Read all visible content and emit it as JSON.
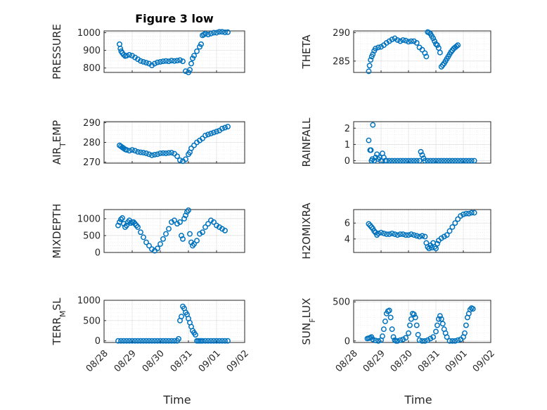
{
  "figure": {
    "title": "Figure 3 low",
    "xlabel": "Time"
  },
  "colors": {
    "marker": "#0072BD"
  },
  "x_ticks": [
    "08/28",
    "08/29",
    "08/30",
    "08/31",
    "09/01",
    "09/02"
  ],
  "chart_data": [
    {
      "type": "scatter",
      "title": "Figure 3 low",
      "xlabel": "",
      "ylabel": "PRESSURE",
      "ylim": [
        775,
        1010
      ],
      "yticks": [
        800,
        900,
        1000
      ],
      "xlim": [
        0,
        5
      ],
      "grid": true,
      "x": [
        0.55,
        0.58,
        0.61,
        0.65,
        0.7,
        0.75,
        0.8,
        0.9,
        1.0,
        1.1,
        1.2,
        1.3,
        1.4,
        1.5,
        1.6,
        1.7,
        1.8,
        1.9,
        2.0,
        2.1,
        2.2,
        2.3,
        2.4,
        2.5,
        2.6,
        2.7,
        2.8,
        2.9,
        3.0,
        3.05,
        3.1,
        3.15,
        3.2,
        3.3,
        3.4,
        3.45,
        3.5,
        3.55,
        3.6,
        3.7,
        3.8,
        3.9,
        4.0,
        4.1,
        4.2,
        4.3,
        4.4
      ],
      "y": [
        935,
        910,
        895,
        885,
        875,
        868,
        870,
        875,
        870,
        860,
        850,
        840,
        835,
        830,
        825,
        815,
        825,
        832,
        835,
        838,
        840,
        838,
        842,
        840,
        842,
        845,
        838,
        782,
        775,
        790,
        825,
        855,
        870,
        895,
        920,
        935,
        985,
        990,
        995,
        990,
        995,
        1000,
        1000,
        1005,
        1005,
        1002,
        1003
      ]
    },
    {
      "type": "scatter",
      "xlabel": "",
      "ylabel": "THETA",
      "ylim": [
        283,
        290.3
      ],
      "yticks": [
        285,
        290
      ],
      "xlim": [
        0,
        5
      ],
      "grid": true,
      "x": [
        0.55,
        0.58,
        0.62,
        0.66,
        0.7,
        0.75,
        0.8,
        0.9,
        1.0,
        1.1,
        1.2,
        1.3,
        1.4,
        1.5,
        1.6,
        1.7,
        1.8,
        1.9,
        2.0,
        2.1,
        2.2,
        2.3,
        2.4,
        2.5,
        2.6,
        2.65,
        2.7,
        2.75,
        2.8,
        2.85,
        2.9,
        2.95,
        3.0,
        3.05,
        3.1,
        3.15,
        3.2,
        3.25,
        3.3,
        3.35,
        3.4,
        3.45,
        3.5,
        3.55,
        3.6,
        3.65,
        3.7,
        3.75,
        3.8
      ],
      "y": [
        283.2,
        284.2,
        285.2,
        285.8,
        286.2,
        286.8,
        287.2,
        287.4,
        287.5,
        287.8,
        288.2,
        288.5,
        288.8,
        289.0,
        288.7,
        288.5,
        288.7,
        288.6,
        288.4,
        288.5,
        288.5,
        288.2,
        287.4,
        287.0,
        286.4,
        285.8,
        290.1,
        290.0,
        289.8,
        289.4,
        289.0,
        288.5,
        288.0,
        287.8,
        287.3,
        286.5,
        284.0,
        284.3,
        284.6,
        285.0,
        285.4,
        285.8,
        286.2,
        286.6,
        286.9,
        287.2,
        287.4,
        287.6,
        287.8
      ]
    },
    {
      "type": "scatter",
      "xlabel": "",
      "ylabel": "AIR_TEMP",
      "ylim": [
        269.5,
        290.5
      ],
      "yticks": [
        270,
        280,
        290
      ],
      "xlim": [
        0,
        5
      ],
      "grid": true,
      "x": [
        0.55,
        0.6,
        0.65,
        0.7,
        0.75,
        0.8,
        0.9,
        1.0,
        1.1,
        1.2,
        1.3,
        1.4,
        1.5,
        1.6,
        1.7,
        1.8,
        1.9,
        2.0,
        2.1,
        2.2,
        2.3,
        2.4,
        2.5,
        2.6,
        2.7,
        2.8,
        2.9,
        3.0,
        3.05,
        3.1,
        3.2,
        3.3,
        3.4,
        3.5,
        3.6,
        3.7,
        3.8,
        3.9,
        4.0,
        4.1,
        4.2,
        4.3,
        4.4
      ],
      "y": [
        278.5,
        278.0,
        277.5,
        277.0,
        276.5,
        276.2,
        275.8,
        276.2,
        275.8,
        275.2,
        275.0,
        274.8,
        274.5,
        274.0,
        273.5,
        273.8,
        274.0,
        274.5,
        274.6,
        274.5,
        274.7,
        274.8,
        274.3,
        273.0,
        271.0,
        270.5,
        271.5,
        274.0,
        275.0,
        277.0,
        278.5,
        280.0,
        281.0,
        282.0,
        283.5,
        284.0,
        284.5,
        285.0,
        285.5,
        286.0,
        287.0,
        287.5,
        288.0
      ]
    },
    {
      "type": "scatter",
      "xlabel": "",
      "ylabel": "RAINFALL",
      "ylim": [
        -0.15,
        2.4
      ],
      "yticks": [
        0,
        1,
        2
      ],
      "xlim": [
        0,
        5
      ],
      "grid": true,
      "x": [
        0.55,
        0.6,
        0.63,
        0.65,
        0.68,
        0.7,
        0.75,
        0.8,
        0.85,
        0.9,
        0.95,
        1.0,
        1.05,
        1.1,
        1.15,
        1.2,
        1.3,
        1.4,
        1.5,
        1.6,
        1.7,
        1.8,
        1.9,
        2.0,
        2.1,
        2.2,
        2.3,
        2.4,
        2.45,
        2.5,
        2.55,
        2.6,
        2.7,
        2.8,
        2.9,
        3.0,
        3.1,
        3.2,
        3.3,
        3.4,
        3.5,
        3.6,
        3.7,
        3.8,
        3.9,
        4.0,
        4.1,
        4.2,
        4.3,
        4.4
      ],
      "y": [
        1.25,
        0.65,
        0.65,
        0.0,
        0.1,
        2.2,
        0.0,
        0.2,
        0.4,
        0.1,
        0.2,
        0.0,
        0.45,
        0.2,
        0.0,
        0.0,
        0.0,
        0.0,
        0.0,
        0.0,
        0.0,
        0.0,
        0.0,
        0.0,
        0.0,
        0.0,
        0.0,
        0.0,
        0.55,
        0.35,
        0.15,
        0.0,
        0.0,
        0.0,
        0.0,
        0.0,
        0.0,
        0.0,
        0.0,
        0.0,
        0.0,
        0.0,
        0.0,
        0.0,
        0.0,
        0.0,
        0.0,
        0.0,
        0.0,
        0.0
      ]
    },
    {
      "type": "scatter",
      "xlabel": "",
      "ylabel": "MIXDEPTH",
      "ylim": [
        0,
        1270
      ],
      "yticks": [
        0,
        500,
        1000
      ],
      "xlim": [
        0,
        5
      ],
      "grid": true,
      "x": [
        0.5,
        0.55,
        0.6,
        0.65,
        0.7,
        0.75,
        0.8,
        0.85,
        0.9,
        0.95,
        1.0,
        1.05,
        1.1,
        1.15,
        1.2,
        1.3,
        1.4,
        1.5,
        1.6,
        1.7,
        1.8,
        1.9,
        2.0,
        2.1,
        2.2,
        2.3,
        2.4,
        2.5,
        2.6,
        2.7,
        2.75,
        2.8,
        2.85,
        2.9,
        2.95,
        3.0,
        3.05,
        3.1,
        3.15,
        3.2,
        3.3,
        3.4,
        3.5,
        3.6,
        3.7,
        3.8,
        3.9,
        4.0,
        4.1,
        4.2,
        4.3
      ],
      "y": [
        800,
        900,
        980,
        1020,
        850,
        750,
        800,
        900,
        950,
        870,
        900,
        900,
        850,
        800,
        750,
        600,
        450,
        300,
        200,
        100,
        50,
        120,
        250,
        400,
        550,
        700,
        900,
        950,
        850,
        900,
        500,
        400,
        1000,
        1100,
        1200,
        1250,
        550,
        300,
        200,
        250,
        350,
        550,
        600,
        750,
        850,
        950,
        900,
        800,
        750,
        700,
        650
      ]
    },
    {
      "type": "scatter",
      "xlabel": "",
      "ylabel": "H2OMIXRA",
      "ylim": [
        2.3,
        7.7
      ],
      "yticks": [
        4,
        6
      ],
      "xlim": [
        0,
        5
      ],
      "grid": true,
      "x": [
        0.55,
        0.6,
        0.65,
        0.7,
        0.75,
        0.8,
        0.85,
        0.9,
        1.0,
        1.1,
        1.2,
        1.3,
        1.4,
        1.5,
        1.6,
        1.7,
        1.8,
        1.9,
        2.0,
        2.1,
        2.2,
        2.3,
        2.4,
        2.5,
        2.6,
        2.65,
        2.7,
        2.75,
        2.8,
        2.85,
        2.9,
        2.95,
        3.0,
        3.05,
        3.1,
        3.2,
        3.3,
        3.4,
        3.5,
        3.6,
        3.7,
        3.8,
        3.9,
        4.0,
        4.1,
        4.2,
        4.3,
        4.4
      ],
      "y": [
        5.9,
        5.7,
        5.5,
        5.3,
        5.0,
        4.8,
        4.5,
        4.7,
        4.8,
        4.7,
        4.6,
        4.6,
        4.7,
        4.6,
        4.5,
        4.6,
        4.6,
        4.5,
        4.5,
        4.6,
        4.5,
        4.4,
        4.3,
        4.4,
        4.3,
        3.5,
        3.0,
        2.8,
        3.2,
        2.9,
        3.5,
        3.0,
        2.8,
        3.4,
        3.8,
        4.1,
        4.3,
        4.5,
        5.0,
        5.5,
        6.0,
        6.5,
        6.9,
        7.1,
        7.2,
        7.2,
        7.3,
        7.3
      ]
    },
    {
      "type": "scatter",
      "xlabel": "",
      "ylabel": "TERR_MSL",
      "ylim": [
        -40,
        1000
      ],
      "yticks": [
        0,
        500,
        1000
      ],
      "xlim": [
        0,
        5
      ],
      "grid": true,
      "x": [
        0.5,
        0.6,
        0.7,
        0.8,
        0.9,
        1.0,
        1.1,
        1.2,
        1.3,
        1.4,
        1.5,
        1.6,
        1.7,
        1.8,
        1.9,
        2.0,
        2.1,
        2.2,
        2.3,
        2.4,
        2.5,
        2.6,
        2.65,
        2.7,
        2.75,
        2.8,
        2.85,
        2.9,
        2.95,
        3.0,
        3.05,
        3.1,
        3.15,
        3.2,
        3.25,
        3.3,
        3.35,
        3.4,
        3.45,
        3.5,
        3.6,
        3.7,
        3.8,
        3.9,
        4.0,
        4.1,
        4.2,
        4.3,
        4.4
      ],
      "y": [
        0,
        0,
        0,
        0,
        0,
        0,
        0,
        0,
        0,
        0,
        0,
        0,
        0,
        0,
        0,
        0,
        0,
        0,
        0,
        0,
        0,
        0,
        50,
        500,
        600,
        850,
        800,
        700,
        650,
        550,
        450,
        350,
        250,
        200,
        150,
        0,
        0,
        0,
        0,
        0,
        0,
        0,
        0,
        0,
        0,
        0,
        0,
        0,
        0
      ]
    },
    {
      "type": "scatter",
      "xlabel": "",
      "ylabel": "SUN_FLUX",
      "ylim": [
        -20,
        520
      ],
      "yticks": [
        0,
        500
      ],
      "xlim": [
        0,
        5
      ],
      "grid": true,
      "x": [
        0.5,
        0.55,
        0.6,
        0.65,
        0.7,
        0.8,
        0.9,
        1.0,
        1.05,
        1.1,
        1.15,
        1.2,
        1.25,
        1.3,
        1.35,
        1.4,
        1.45,
        1.5,
        1.55,
        1.6,
        1.7,
        1.8,
        1.9,
        2.0,
        2.05,
        2.1,
        2.15,
        2.2,
        2.25,
        2.3,
        2.35,
        2.4,
        2.5,
        2.6,
        2.7,
        2.8,
        2.9,
        3.0,
        3.05,
        3.1,
        3.15,
        3.2,
        3.25,
        3.3,
        3.35,
        3.4,
        3.5,
        3.6,
        3.7,
        3.8,
        3.9,
        4.0,
        4.05,
        4.1,
        4.15,
        4.2,
        4.25,
        4.3,
        4.35
      ],
      "y": [
        30,
        35,
        40,
        50,
        20,
        5,
        0,
        10,
        60,
        150,
        250,
        350,
        380,
        390,
        300,
        150,
        50,
        10,
        0,
        0,
        10,
        20,
        40,
        100,
        200,
        280,
        350,
        340,
        300,
        200,
        80,
        10,
        0,
        0,
        10,
        30,
        50,
        120,
        200,
        280,
        320,
        280,
        220,
        150,
        100,
        50,
        0,
        0,
        0,
        10,
        20,
        50,
        100,
        200,
        300,
        350,
        400,
        420,
        410
      ]
    }
  ]
}
